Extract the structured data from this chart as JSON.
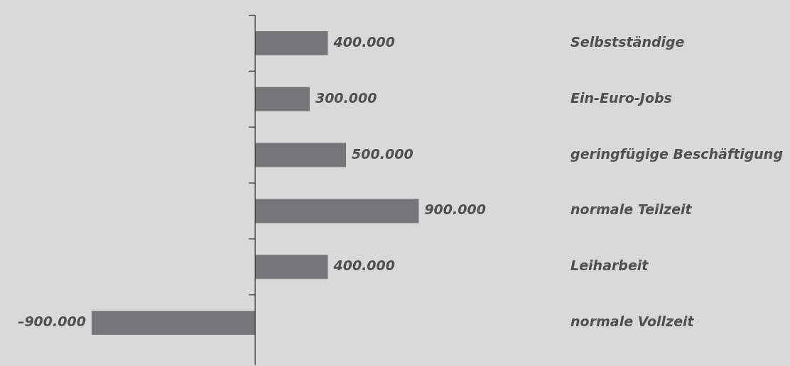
{
  "chart_data": {
    "type": "bar",
    "orientation": "horizontal",
    "categories": [
      "Selbstständige",
      "Ein-Euro-Jobs",
      "geringfügige Beschäftigung",
      "normale Teilzeit",
      "Leiharbeit",
      "normale Vollzeit"
    ],
    "values": [
      400000,
      300000,
      500000,
      900000,
      400000,
      -900000
    ],
    "value_labels": [
      "400.000",
      "300.000",
      "500.000",
      "900.000",
      "400.000",
      "–900.000"
    ],
    "color": "#767679",
    "tick_labels": "y",
    "legend": false
  }
}
